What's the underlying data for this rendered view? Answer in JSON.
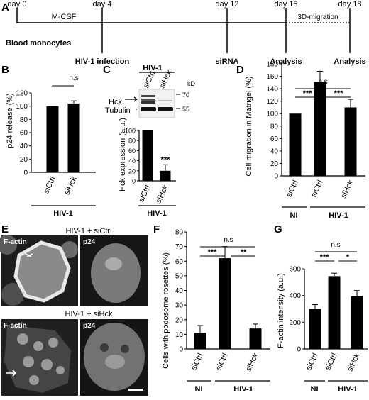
{
  "panelA": {
    "letter": "A",
    "days": [
      "day 0",
      "day 4",
      "day 12",
      "day 15",
      "day 18"
    ],
    "mcsf": "M-CSF",
    "migration": "3D-migration",
    "steps": [
      "Blood monocytes",
      "HIV-1 infection",
      "siRNA",
      "Analysis",
      "Analysis"
    ]
  },
  "panelB": {
    "letter": "B",
    "ylabel": "p24 release (%)",
    "ns": "n.s",
    "group": "HIV-1"
  },
  "panelC": {
    "letter": "C",
    "blot_header": "HIV-1",
    "lanes": [
      "siCtrl",
      "siHck"
    ],
    "kd": "kD",
    "markers": [
      "70",
      "55"
    ],
    "bands": [
      "Hck",
      "Tubulin"
    ],
    "ylabel": "Hck expression (a.u.)",
    "sig": "***",
    "group": "HIV-1"
  },
  "panelD": {
    "letter": "D",
    "ylabel": "Cell migration in Matrigel (%)",
    "sig_left": "***",
    "sig_right": "***",
    "ns": "n.s",
    "groups": [
      "NI",
      "HIV-1"
    ]
  },
  "panelE": {
    "letter": "E",
    "top_title": "HIV-1 + siCtrl",
    "bottom_title": "HIV-1 + siHck",
    "label_actin": "F-actin",
    "label_p24": "p24"
  },
  "panelF": {
    "letter": "F",
    "ylabel": "Cells with podosome rosettes (%)",
    "sig_left": "***",
    "sig_right": "**",
    "ns": "n.s",
    "groups": [
      "NI",
      "HIV-1"
    ]
  },
  "panelG": {
    "letter": "G",
    "ylabel": "F-actin intensity (a.u.)",
    "sig_left": "***",
    "sig_right": "*",
    "ns": "n.s",
    "groups": [
      "NI",
      "HIV-1"
    ]
  },
  "chart_data": [
    {
      "panel": "B",
      "type": "bar",
      "categories": [
        "siCtrl",
        "siHck"
      ],
      "values": [
        100,
        104
      ],
      "errors": [
        0,
        4
      ],
      "ylim": [
        0,
        120
      ],
      "yticks": [
        0,
        20,
        40,
        60,
        80,
        100,
        120
      ],
      "ylabel": "p24 release (%)"
    },
    {
      "panel": "C",
      "type": "bar",
      "categories": [
        "siCtrl",
        "siHck"
      ],
      "values": [
        100,
        20
      ],
      "errors": [
        0,
        12
      ],
      "ylim": [
        0,
        100
      ],
      "yticks": [
        0,
        20,
        40,
        60,
        80,
        100
      ],
      "ylabel": "Hck expression (a.u.)"
    },
    {
      "panel": "D",
      "type": "bar",
      "categories": [
        "siCtrl",
        "siCtrl",
        "siHck"
      ],
      "values": [
        100,
        151,
        110
      ],
      "errors": [
        0,
        17,
        13
      ],
      "ylim": [
        0,
        180
      ],
      "yticks": [
        0,
        20,
        40,
        60,
        80,
        100,
        120,
        140,
        160,
        180
      ],
      "ylabel": "Cell migration in Matrigel (%)"
    },
    {
      "panel": "F",
      "type": "bar",
      "categories": [
        "siCtrl",
        "siCtrl",
        "siHck"
      ],
      "values": [
        11,
        62,
        14
      ],
      "errors": [
        5,
        8,
        3
      ],
      "ylim": [
        0,
        80
      ],
      "yticks": [
        0,
        10,
        20,
        30,
        40,
        50,
        60,
        70,
        80
      ],
      "ylabel": "Cells with podosome rosettes (%)"
    },
    {
      "panel": "G",
      "type": "bar",
      "categories": [
        "siCtrl",
        "siCtrl",
        "siHck"
      ],
      "values": [
        300,
        545,
        395
      ],
      "errors": [
        32,
        22,
        42
      ],
      "ylim": [
        0,
        600
      ],
      "yticks": [
        0,
        200,
        400,
        600
      ],
      "ylabel": "F-actin intensity (a.u.)"
    }
  ]
}
